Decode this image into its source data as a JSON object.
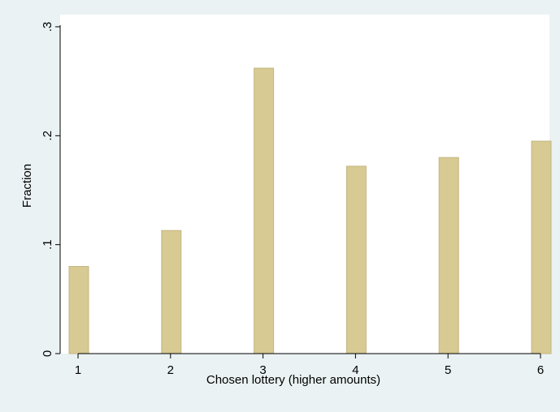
{
  "chart_data": {
    "type": "bar",
    "xlabel": "Chosen lottery (higher amounts)",
    "ylabel": "Fraction",
    "categories": [
      1,
      2,
      3,
      4,
      5,
      6
    ],
    "values": [
      0.08,
      0.113,
      0.262,
      0.172,
      0.18,
      0.195
    ],
    "xlim": [
      0.8,
      6.1
    ],
    "ylim": [
      0,
      0.3
    ],
    "x_ticks": [
      "1",
      "2",
      "3",
      "4",
      "5",
      "6"
    ],
    "y_ticks": [
      {
        "value": 0,
        "label": "0"
      },
      {
        "value": 0.1,
        "label": ".1"
      },
      {
        "value": 0.2,
        "label": ".2"
      },
      {
        "value": 0.3,
        "label": ".3"
      }
    ],
    "grid": false,
    "legend": "none",
    "colors": {
      "background": "#eaf2f3",
      "plot_background": "#ffffff",
      "bar_fill": "#d7ca92",
      "bar_edge": "#c4b681",
      "axis": "#000000"
    }
  }
}
